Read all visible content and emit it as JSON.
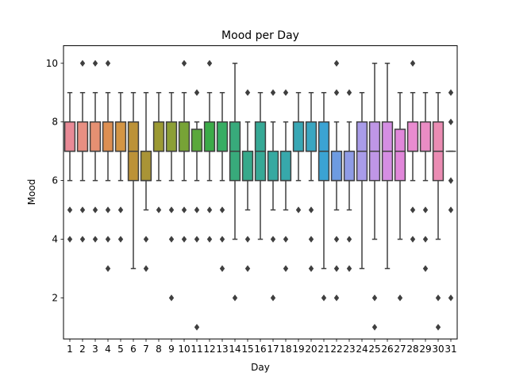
{
  "chart_data": {
    "type": "box",
    "title": "Mood per Day",
    "xlabel": "Day",
    "ylabel": "Mood",
    "ylim": [
      0.6,
      10.6
    ],
    "yticks": [
      2,
      4,
      6,
      8,
      10
    ],
    "grid": false,
    "legend": "none",
    "categories": [
      "1",
      "2",
      "3",
      "4",
      "5",
      "6",
      "7",
      "8",
      "9",
      "10",
      "11",
      "12",
      "13",
      "14",
      "15",
      "16",
      "17",
      "18",
      "19",
      "20",
      "21",
      "22",
      "23",
      "24",
      "25",
      "26",
      "27",
      "28",
      "29",
      "30",
      "31"
    ],
    "boxes": [
      {
        "day": "1",
        "whislo": 6,
        "q1": 7,
        "med": 7,
        "q3": 8,
        "whishi": 9,
        "fliers": [
          5,
          4
        ],
        "color": "#e98a96"
      },
      {
        "day": "2",
        "whislo": 6,
        "q1": 7,
        "med": 7,
        "q3": 8,
        "whishi": 9,
        "fliers": [
          5,
          4,
          10
        ],
        "color": "#e88f82"
      },
      {
        "day": "3",
        "whislo": 6,
        "q1": 7,
        "med": 7,
        "q3": 8,
        "whishi": 9,
        "fliers": [
          5,
          4,
          10
        ],
        "color": "#e59072"
      },
      {
        "day": "4",
        "whislo": 6,
        "q1": 7,
        "med": 7,
        "q3": 8,
        "whishi": 9,
        "fliers": [
          5,
          4,
          3,
          10
        ],
        "color": "#dd8f52"
      },
      {
        "day": "5",
        "whislo": 6,
        "q1": 7,
        "med": 7,
        "q3": 8,
        "whishi": 9,
        "fliers": [
          5,
          4
        ],
        "color": "#d39544"
      },
      {
        "day": "6",
        "whislo": 3,
        "q1": 6,
        "med": 7,
        "q3": 8,
        "whishi": 9,
        "fliers": [],
        "color": "#bc9237"
      },
      {
        "day": "7",
        "whislo": 5,
        "q1": 6,
        "med": 6,
        "q3": 7,
        "whishi": 9,
        "fliers": [
          4,
          3
        ],
        "color": "#a99436"
      },
      {
        "day": "8",
        "whislo": 6,
        "q1": 7,
        "med": 7,
        "q3": 8,
        "whishi": 9,
        "fliers": [
          5
        ],
        "color": "#9c9a33"
      },
      {
        "day": "9",
        "whislo": 6,
        "q1": 7,
        "med": 7,
        "q3": 8,
        "whishi": 9,
        "fliers": [
          5,
          4,
          2
        ],
        "color": "#8c9f35"
      },
      {
        "day": "10",
        "whislo": 6,
        "q1": 7,
        "med": 7,
        "q3": 8,
        "whishi": 9,
        "fliers": [
          5,
          4,
          10
        ],
        "color": "#77a336"
      },
      {
        "day": "11",
        "whislo": 6,
        "q1": 7,
        "med": 7,
        "q3": 7.75,
        "whishi": 8,
        "fliers": [
          9,
          5,
          4,
          1
        ],
        "color": "#5aa83b"
      },
      {
        "day": "12",
        "whislo": 6,
        "q1": 7,
        "med": 7,
        "q3": 8,
        "whishi": 9,
        "fliers": [
          10,
          5,
          4
        ],
        "color": "#3bab48"
      },
      {
        "day": "13",
        "whislo": 6,
        "q1": 7,
        "med": 7,
        "q3": 8,
        "whishi": 9,
        "fliers": [
          5,
          4,
          3
        ],
        "color": "#37ad63"
      },
      {
        "day": "14",
        "whislo": 4,
        "q1": 6,
        "med": 7,
        "q3": 8,
        "whishi": 10,
        "fliers": [
          2
        ],
        "color": "#38aa7b"
      },
      {
        "day": "15",
        "whislo": 5,
        "q1": 6,
        "med": 6,
        "q3": 7,
        "whishi": 8,
        "fliers": [
          9,
          4,
          3
        ],
        "color": "#36a98b"
      },
      {
        "day": "16",
        "whislo": 4,
        "q1": 6,
        "med": 7,
        "q3": 8,
        "whishi": 9,
        "fliers": [],
        "color": "#36a996"
      },
      {
        "day": "17",
        "whislo": 5,
        "q1": 6,
        "med": 6,
        "q3": 7,
        "whishi": 8,
        "fliers": [
          9,
          4,
          2
        ],
        "color": "#36a9a1"
      },
      {
        "day": "18",
        "whislo": 5,
        "q1": 6,
        "med": 6,
        "q3": 7,
        "whishi": 8,
        "fliers": [
          9,
          4,
          3
        ],
        "color": "#37a8ab"
      },
      {
        "day": "19",
        "whislo": 6,
        "q1": 7,
        "med": 7,
        "q3": 8,
        "whishi": 9,
        "fliers": [
          5
        ],
        "color": "#38a7b5"
      },
      {
        "day": "20",
        "whislo": 6,
        "q1": 7,
        "med": 7,
        "q3": 8,
        "whishi": 9,
        "fliers": [
          5,
          4,
          3
        ],
        "color": "#3aa6c1"
      },
      {
        "day": "21",
        "whislo": 3,
        "q1": 6,
        "med": 7,
        "q3": 8,
        "whishi": 9,
        "fliers": [
          2
        ],
        "color": "#3ba3d3"
      },
      {
        "day": "22",
        "whislo": 5,
        "q1": 6,
        "med": 6,
        "q3": 7,
        "whishi": 8,
        "fliers": [
          10,
          9,
          4,
          3,
          2
        ],
        "color": "#6d9be1"
      },
      {
        "day": "23",
        "whislo": 5,
        "q1": 6,
        "med": 6,
        "q3": 7,
        "whishi": 8,
        "fliers": [
          9,
          4,
          3
        ],
        "color": "#8f9ce6"
      },
      {
        "day": "24",
        "whislo": 3,
        "q1": 6,
        "med": 7,
        "q3": 8,
        "whishi": 9,
        "fliers": [],
        "color": "#a99ce9"
      },
      {
        "day": "25",
        "whislo": 4,
        "q1": 6,
        "med": 7,
        "q3": 8,
        "whishi": 10,
        "fliers": [
          2,
          1
        ],
        "color": "#bf96e6"
      },
      {
        "day": "26",
        "whislo": 3,
        "q1": 6,
        "med": 7,
        "q3": 8,
        "whishi": 10,
        "fliers": [],
        "color": "#d58ee3"
      },
      {
        "day": "27",
        "whislo": 4,
        "q1": 6,
        "med": 7,
        "q3": 7.75,
        "whishi": 9,
        "fliers": [
          2
        ],
        "color": "#e187da"
      },
      {
        "day": "28",
        "whislo": 6,
        "q1": 7,
        "med": 7,
        "q3": 8,
        "whishi": 9,
        "fliers": [
          10,
          5,
          4
        ],
        "color": "#e98cd0"
      },
      {
        "day": "29",
        "whislo": 6,
        "q1": 7,
        "med": 7,
        "q3": 8,
        "whishi": 9,
        "fliers": [
          5,
          4,
          3
        ],
        "color": "#ea8cc4"
      },
      {
        "day": "30",
        "whislo": 4,
        "q1": 6,
        "med": 7,
        "q3": 8,
        "whishi": 9,
        "fliers": [
          2,
          1
        ],
        "color": "#eb8cb3"
      },
      {
        "day": "31",
        "whislo": 7,
        "q1": 7,
        "med": 7,
        "q3": 7,
        "whishi": 7,
        "fliers": [
          9,
          8,
          6,
          5,
          2
        ],
        "color": "#ea8ea8"
      }
    ]
  }
}
